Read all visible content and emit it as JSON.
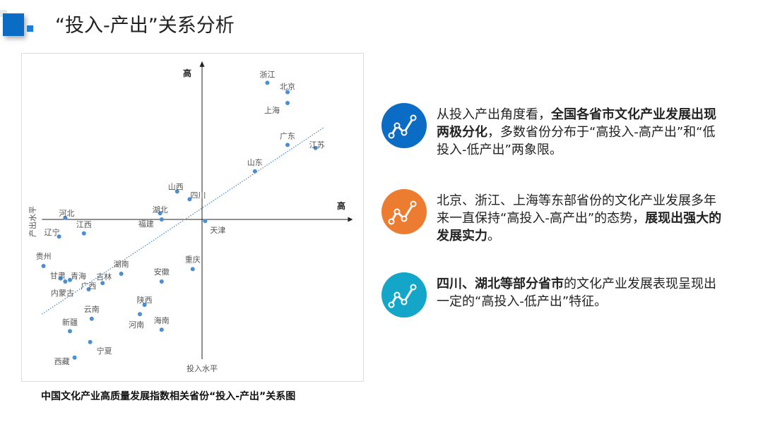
{
  "header": {
    "title": "“投入-产出”关系分析"
  },
  "caption": "中国文化产业高质量发展指数相关省份“投入-产出”关系图",
  "chart_data": {
    "type": "scatter",
    "title": "",
    "xlabel": "投入水平",
    "ylabel": "产出水平",
    "x_high_label": "高",
    "y_high_label": "高",
    "xlim": [
      -103,
      97
    ],
    "ylim": [
      -90,
      101
    ],
    "grid": false,
    "point_color": "#4a8fd4",
    "trendline": {
      "style": "dotted",
      "color": "#4a8fd4",
      "x": [
        -103,
        78
      ],
      "y": [
        -61,
        59
      ]
    },
    "points": [
      {
        "name": "浙江",
        "x": 42,
        "y": 88
      },
      {
        "name": "北京",
        "x": 55,
        "y": 82
      },
      {
        "name": "上海",
        "x": 55,
        "y": 75
      },
      {
        "name": "广东",
        "x": 55,
        "y": 48
      },
      {
        "name": "江苏",
        "x": 73,
        "y": 46
      },
      {
        "name": "山东",
        "x": 34,
        "y": 31
      },
      {
        "name": "山西",
        "x": -16,
        "y": 18
      },
      {
        "name": "四川",
        "x": -8,
        "y": 13
      },
      {
        "name": "湖北",
        "x": -27,
        "y": 4
      },
      {
        "name": "福建",
        "x": -26,
        "y": 0
      },
      {
        "name": "天津",
        "x": 2,
        "y": -1
      },
      {
        "name": "河北",
        "x": -88,
        "y": 1
      },
      {
        "name": "江西",
        "x": -76,
        "y": -9
      },
      {
        "name": "辽宁",
        "x": -92,
        "y": -11
      },
      {
        "name": "贵州",
        "x": -102,
        "y": -30
      },
      {
        "name": "甘肃",
        "x": -91,
        "y": -38
      },
      {
        "name": "内蒙古",
        "x": -88,
        "y": -40
      },
      {
        "name": "青海",
        "x": -85,
        "y": -39
      },
      {
        "name": "吉林",
        "x": -64,
        "y": -41
      },
      {
        "name": "广西",
        "x": -73,
        "y": -45
      },
      {
        "name": "湖南",
        "x": -52,
        "y": -35
      },
      {
        "name": "安徽",
        "x": -26,
        "y": -40
      },
      {
        "name": "重庆",
        "x": -6,
        "y": -32
      },
      {
        "name": "陕西",
        "x": -37,
        "y": -55
      },
      {
        "name": "河南",
        "x": -40,
        "y": -61
      },
      {
        "name": "海南",
        "x": -26,
        "y": -71
      },
      {
        "name": "云南",
        "x": -71,
        "y": -64
      },
      {
        "name": "新疆",
        "x": -85,
        "y": -72
      },
      {
        "name": "宁夏",
        "x": -72,
        "y": -79
      },
      {
        "name": "西藏",
        "x": -82,
        "y": -89
      }
    ]
  },
  "points_text": [
    {
      "icon": "trend-line-icon",
      "color": "#0a6cc4",
      "parts": [
        {
          "t": "从投入产出角度看，",
          "b": false
        },
        {
          "t": "全国各省市文化产业发展出现两极分化",
          "b": true
        },
        {
          "t": "，多数省份分布于“高投入-高产出”和“低投入-低产出”两象限。",
          "b": false
        }
      ]
    },
    {
      "icon": "trend-line-icon",
      "color": "#ec7c30",
      "parts": [
        {
          "t": "北京、浙江、上海等东部省份的文化产业发展多年来一直保持“高投入-高产出”的态势，",
          "b": false
        },
        {
          "t": "展现出强大的发展实力",
          "b": true
        },
        {
          "t": "。",
          "b": false
        }
      ]
    },
    {
      "icon": "trend-line-icon",
      "color": "#13a6c9",
      "parts": [
        {
          "t": "四川、湖北等部分省市",
          "b": true
        },
        {
          "t": "的文化产业发展表现呈现出一定的“高投入-低产出”特征。",
          "b": false
        }
      ]
    }
  ]
}
